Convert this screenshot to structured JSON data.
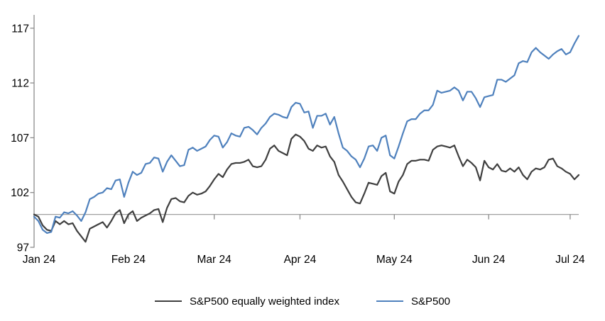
{
  "chart_data": {
    "type": "line",
    "title": "",
    "x_tick_labels": [
      "Jan 24",
      "Feb 24",
      "Mar 24",
      "Apr 24",
      "May 24",
      "Jun 24",
      "Jul 24"
    ],
    "x_tick_indices": [
      0,
      22,
      42,
      62,
      84,
      106,
      125
    ],
    "y_ticks": [
      97,
      102,
      107,
      112,
      117
    ],
    "y_range": [
      97,
      118.3
    ],
    "baseline_value": 100,
    "grid": "none",
    "legend_position": "bottom-center",
    "axis_color": "#8C8C8C",
    "baseline_color": "#A0A0A0",
    "text_color": "#000000",
    "series": [
      {
        "name": "S&P500 equally weighted index",
        "color": "#3F3F3F",
        "values": [
          100.0,
          99.8,
          99.0,
          98.6,
          98.5,
          99.4,
          99.1,
          99.4,
          99.1,
          99.2,
          98.5,
          98.0,
          97.5,
          98.7,
          98.9,
          99.1,
          99.3,
          98.8,
          99.4,
          100.1,
          100.4,
          99.2,
          100.0,
          100.3,
          99.4,
          99.7,
          99.9,
          100.1,
          100.4,
          100.5,
          99.3,
          100.6,
          101.4,
          101.5,
          101.2,
          101.1,
          101.7,
          102.0,
          101.8,
          101.9,
          102.1,
          102.6,
          103.2,
          103.7,
          103.4,
          104.1,
          104.6,
          104.7,
          104.7,
          104.8,
          105.0,
          104.4,
          104.3,
          104.4,
          105.0,
          106.0,
          106.3,
          105.8,
          105.6,
          105.4,
          106.9,
          107.3,
          107.1,
          106.7,
          106.0,
          105.8,
          106.3,
          106.1,
          106.2,
          105.3,
          104.8,
          103.6,
          103.0,
          102.3,
          101.6,
          101.1,
          101.0,
          101.9,
          102.9,
          102.8,
          102.7,
          103.5,
          103.8,
          102.1,
          101.9,
          103.0,
          103.6,
          104.6,
          104.9,
          104.9,
          105.0,
          105.0,
          104.9,
          105.9,
          106.2,
          106.3,
          106.2,
          106.1,
          106.3,
          105.3,
          104.4,
          105.0,
          104.7,
          104.3,
          103.1,
          104.9,
          104.3,
          104.1,
          104.6,
          104.0,
          103.9,
          104.2,
          103.9,
          104.3,
          103.6,
          103.2,
          103.9,
          104.2,
          104.1,
          104.3,
          105.0,
          105.1,
          104.4,
          104.2,
          103.9,
          103.7,
          103.2,
          103.6
        ]
      },
      {
        "name": "S&P500",
        "color": "#4F81BD",
        "values": [
          99.8,
          99.4,
          98.6,
          98.3,
          98.4,
          99.8,
          99.7,
          100.2,
          100.1,
          100.3,
          99.9,
          99.4,
          100.2,
          101.4,
          101.6,
          101.9,
          102.0,
          102.4,
          102.3,
          103.1,
          103.2,
          101.6,
          102.9,
          103.9,
          103.6,
          103.8,
          104.6,
          104.7,
          105.2,
          105.1,
          103.9,
          104.8,
          105.4,
          104.9,
          104.4,
          104.5,
          105.9,
          106.1,
          105.8,
          106.0,
          106.2,
          106.8,
          107.2,
          107.1,
          106.1,
          106.6,
          107.4,
          107.2,
          107.1,
          107.9,
          108.0,
          107.7,
          107.3,
          107.9,
          108.3,
          108.9,
          109.2,
          109.1,
          108.9,
          108.8,
          109.8,
          110.2,
          110.1,
          109.3,
          109.4,
          107.9,
          109.0,
          109.0,
          109.2,
          108.2,
          108.9,
          107.4,
          106.1,
          105.8,
          105.3,
          105.0,
          104.3,
          105.1,
          106.2,
          106.3,
          105.8,
          107.0,
          107.2,
          105.4,
          105.1,
          106.2,
          107.4,
          108.5,
          108.7,
          108.7,
          109.2,
          109.5,
          109.5,
          110.0,
          111.3,
          111.1,
          111.2,
          111.3,
          111.6,
          111.3,
          110.4,
          111.2,
          111.2,
          110.6,
          109.8,
          110.7,
          110.8,
          110.9,
          112.3,
          112.3,
          112.1,
          112.4,
          112.7,
          113.8,
          114.0,
          113.9,
          114.8,
          115.2,
          114.8,
          114.5,
          114.2,
          114.6,
          114.9,
          115.1,
          114.6,
          114.8,
          115.6,
          116.3
        ]
      }
    ]
  }
}
